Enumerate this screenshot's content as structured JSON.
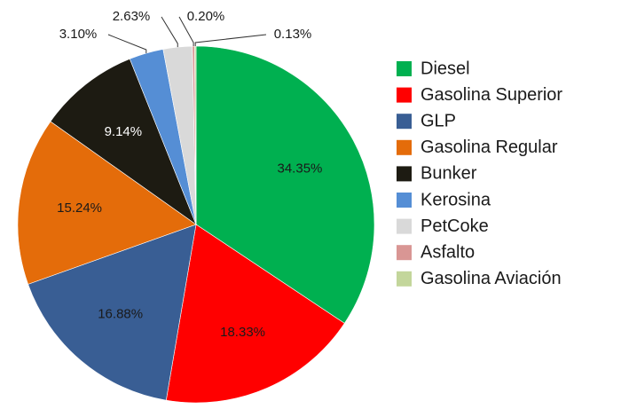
{
  "chart_data": {
    "type": "pie",
    "categories": [
      "Diesel",
      "Gasolina Superior",
      "GLP",
      "Gasolina Regular",
      "Bunker",
      "Kerosina",
      "PetCoke",
      "Asfalto",
      "Gasolina Aviación"
    ],
    "values": [
      34.35,
      18.33,
      16.88,
      15.24,
      9.14,
      3.1,
      2.63,
      0.2,
      0.13
    ],
    "value_labels": [
      "34.35%",
      "18.33%",
      "16.88%",
      "15.24%",
      "9.14%",
      "3.10%",
      "2.63%",
      "0.20%",
      "0.13%"
    ],
    "colors": [
      "#00b050",
      "#ff0000",
      "#395e94",
      "#e46c0a",
      "#1d1b12",
      "#558ed5",
      "#d9d9d9",
      "#d99694",
      "#c3d69b"
    ],
    "legend": "right"
  }
}
